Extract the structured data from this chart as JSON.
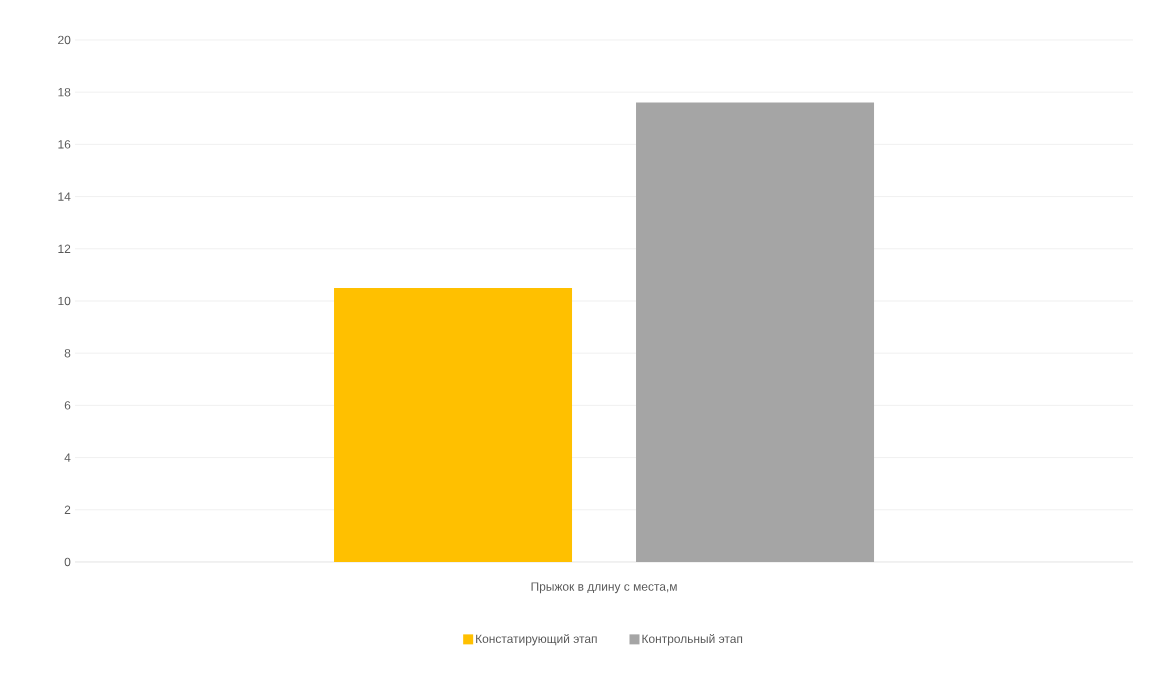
{
  "chart_data": {
    "type": "bar",
    "categories": [
      "Прыжок в длину с места,м"
    ],
    "series": [
      {
        "name": "Констатирующий этап",
        "color": "#ffc000",
        "values": [
          10.5
        ]
      },
      {
        "name": "Контрольный этап",
        "color": "#a5a5a5",
        "values": [
          17.6
        ]
      }
    ],
    "ylim": [
      0,
      20
    ],
    "yticks": [
      0,
      2,
      4,
      6,
      8,
      10,
      12,
      14,
      16,
      18,
      20
    ],
    "grid": "y",
    "legend": "bottom"
  }
}
